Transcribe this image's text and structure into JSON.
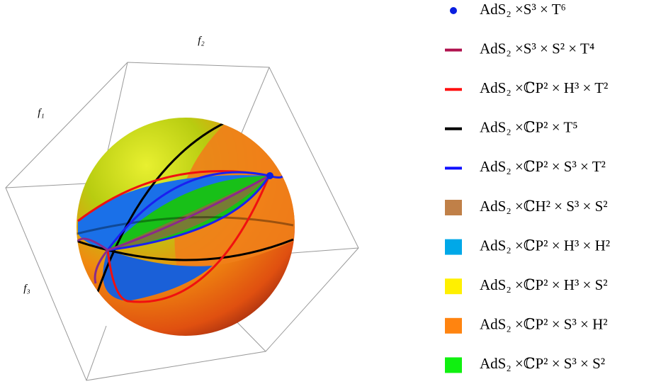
{
  "axes": {
    "f1": "f₁",
    "f2": "f₂",
    "f3": "f₃"
  },
  "legend": {
    "items": [
      {
        "label": "AdS₂ ×S³ × T⁶",
        "marker": "dot",
        "color": "#0a1fe0"
      },
      {
        "label": "AdS₂ ×S³ × S² × T⁴",
        "marker": "line",
        "color": "#b0124e"
      },
      {
        "label": "AdS₂ ×ℂP² × H³ × T²",
        "marker": "line",
        "color": "#ff1010"
      },
      {
        "label": "AdS₂ ×ℂP² × T⁵",
        "marker": "line",
        "color": "#000000"
      },
      {
        "label": "AdS₂ ×ℂP² × S³ × T²",
        "marker": "line",
        "color": "#1010ff"
      },
      {
        "label": "AdS₂ ×ℂH² × S³ × S²",
        "marker": "square",
        "color": "#c08048"
      },
      {
        "label": "AdS₂ ×ℂP² × H³ × H²",
        "marker": "square",
        "color": "#00a8e8"
      },
      {
        "label": "AdS₂ ×ℂP² × H³ × S²",
        "marker": "square",
        "color": "#fff000"
      },
      {
        "label": "AdS₂ ×ℂP² × S³ × H²",
        "marker": "square",
        "color": "#ff8410"
      },
      {
        "label": "AdS₂ ×ℂP² × S³ × S²",
        "marker": "square",
        "color": "#10f010"
      }
    ]
  }
}
